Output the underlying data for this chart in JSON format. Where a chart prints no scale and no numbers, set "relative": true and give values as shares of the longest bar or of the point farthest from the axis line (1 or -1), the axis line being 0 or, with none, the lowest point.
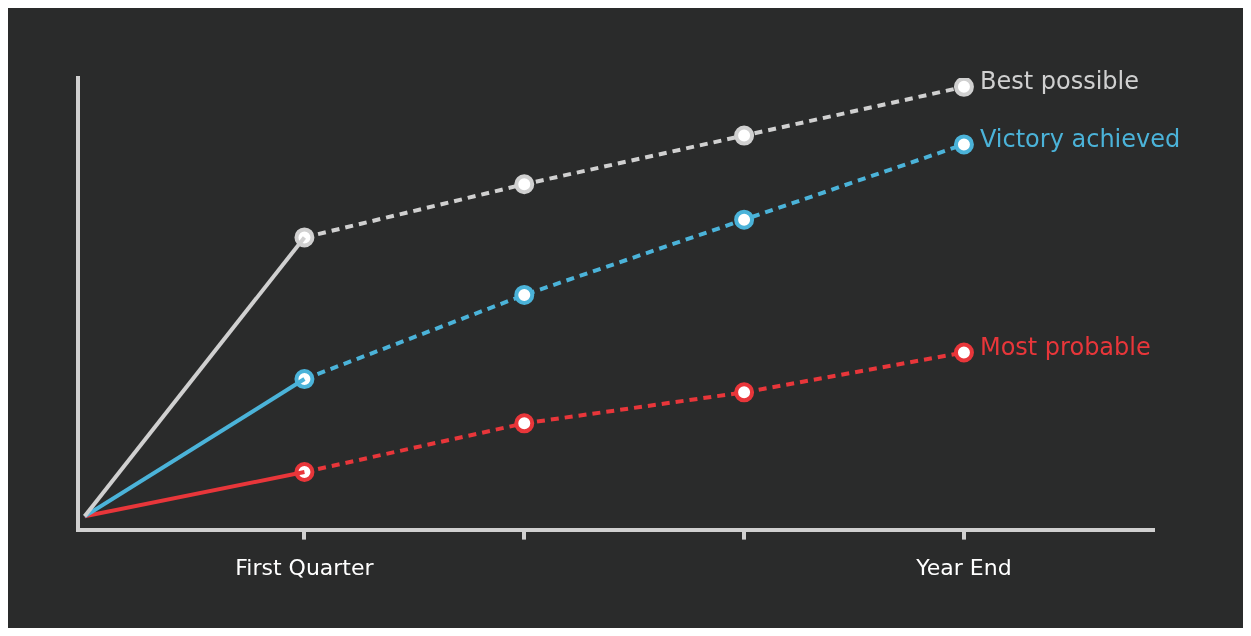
{
  "chart_data": {
    "type": "line",
    "relative": true,
    "categories": [
      null,
      "First Quarter",
      null,
      null,
      "Year End"
    ],
    "legend": false,
    "grid": false,
    "series": [
      {
        "color": "#d0d0d0",
        "line_style": "solid",
        "marker": "none",
        "values": [
          0.03,
          0.66,
          null,
          null,
          null
        ]
      },
      {
        "color": "#4bb3d9",
        "line_style": "solid",
        "marker": "none",
        "values": [
          0.03,
          0.34,
          null,
          null,
          null
        ]
      },
      {
        "color": "#e8363a",
        "line_style": "solid",
        "marker": "none",
        "values": [
          0.03,
          0.13,
          null,
          null,
          null
        ]
      },
      {
        "name": "Best possible",
        "color": "#d0d0d0",
        "line_style": "dashed",
        "marker": "circle",
        "values": [
          null,
          0.66,
          0.78,
          0.89,
          1
        ]
      },
      {
        "name": "Victory achieved",
        "color": "#4bb3d9",
        "line_style": "dashed",
        "marker": "circle",
        "values": [
          null,
          0.34,
          0.53,
          0.7,
          0.87
        ]
      },
      {
        "name": "Most probable",
        "color": "#e8363a",
        "line_style": "dashed",
        "marker": "circle",
        "values": [
          null,
          0.13,
          0.24,
          0.31,
          0.4
        ]
      }
    ]
  }
}
